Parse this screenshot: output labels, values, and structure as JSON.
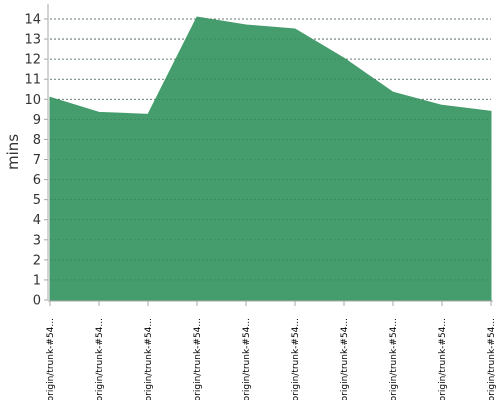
{
  "chart_data": {
    "type": "area",
    "ylabel": "mins",
    "xlabel": "",
    "ylim": [
      0,
      14
    ],
    "yticks": [
      0,
      1,
      2,
      3,
      4,
      5,
      6,
      7,
      8,
      9,
      10,
      11,
      12,
      13,
      14
    ],
    "grid": true,
    "legend": "none",
    "categories": [
      "origin/trunk-#54...",
      "origin/trunk-#54...",
      "origin/trunk-#54...",
      "origin/trunk-#54...",
      "origin/trunk-#54...",
      "origin/trunk-#54...",
      "origin/trunk-#54...",
      "origin/trunk-#54...",
      "origin/trunk-#54...",
      "origin/trunk-#54..."
    ],
    "series": [
      {
        "values": [
          10.1,
          9.35,
          9.25,
          14.1,
          13.7,
          13.5,
          12.05,
          10.35,
          9.7,
          9.4
        ],
        "color": "#459c6c"
      }
    ],
    "colors": {
      "fill": "#459c6c",
      "grid": "#555555",
      "axis": "#aaaaaa"
    }
  }
}
